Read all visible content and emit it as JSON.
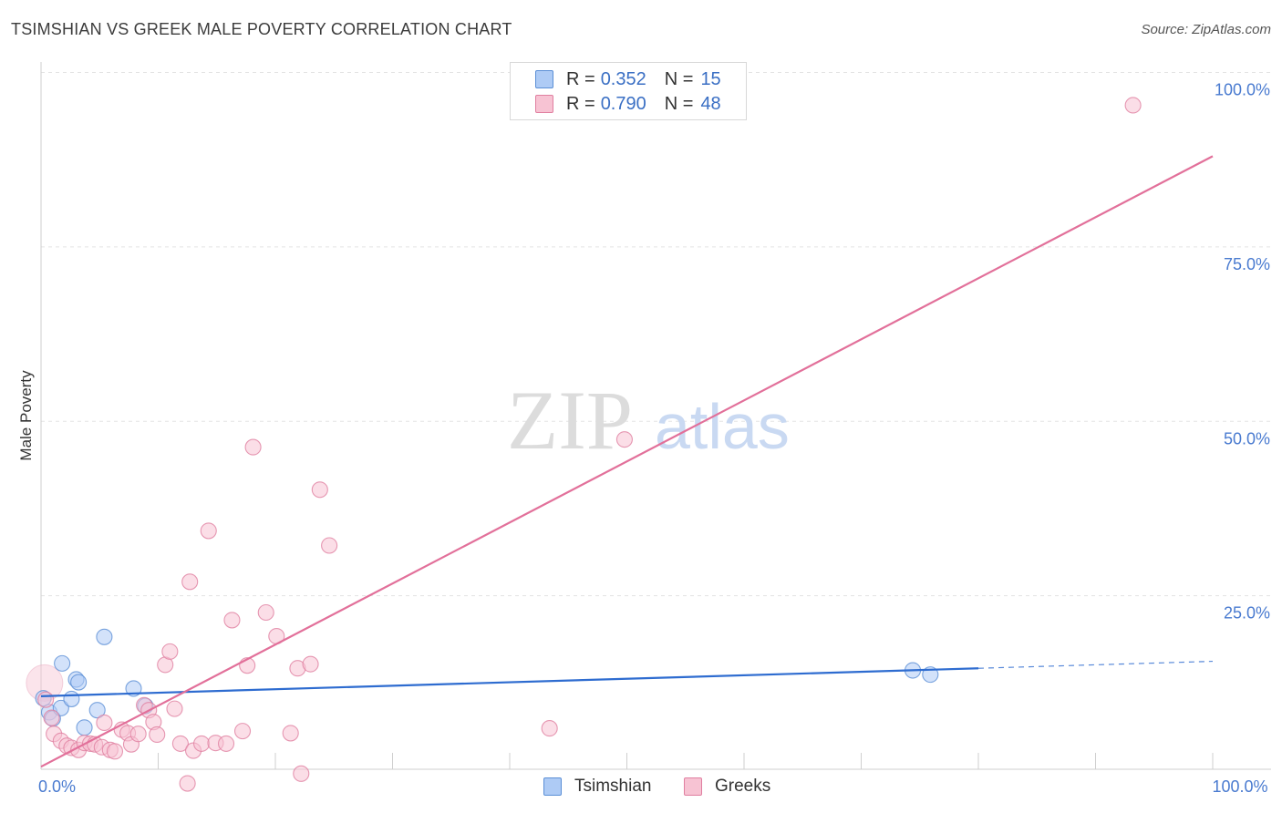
{
  "header": {
    "title": "TSIMSHIAN VS GREEK MALE POVERTY CORRELATION CHART",
    "source": "Source: ZipAtlas.com"
  },
  "watermark": {
    "part1": "ZIP",
    "part2": "atlas"
  },
  "legend": {
    "rows": [
      {
        "r_label": "R =",
        "r_value": "0.352",
        "n_label": "N =",
        "n_value": "15",
        "color": "#aecbf5",
        "border": "#5b8fd6"
      },
      {
        "r_label": "R =",
        "r_value": "0.790",
        "n_label": "N =",
        "n_value": "48",
        "color": "#f7c3d3",
        "border": "#e07fa0"
      }
    ]
  },
  "bottom_legend": {
    "items": [
      {
        "label": "Tsimshian",
        "color": "#aecbf5",
        "border": "#5b8fd6"
      },
      {
        "label": "Greeks",
        "color": "#f7c3d3",
        "border": "#e07fa0"
      }
    ]
  },
  "chart_data": {
    "type": "scatter",
    "title": "TSIMSHIAN VS GREEK MALE POVERTY CORRELATION CHART",
    "xlabel": "",
    "ylabel": "Male Poverty",
    "xlim": [
      0,
      100
    ],
    "ylim": [
      0,
      100
    ],
    "x_tick_labels": [
      {
        "value": 0,
        "label": "0.0%"
      },
      {
        "value": 100,
        "label": "100.0%"
      }
    ],
    "y_tick_labels": [
      {
        "value": 25,
        "label": "25.0%"
      },
      {
        "value": 50,
        "label": "50.0%"
      },
      {
        "value": 75,
        "label": "75.0%"
      },
      {
        "value": 100,
        "label": "100.0%"
      }
    ],
    "grid": true,
    "series": [
      {
        "name": "Tsimshian",
        "color": "#5b8fd6",
        "fill": "#aecbf5",
        "points": [
          [
            0.2,
            10.3
          ],
          [
            0.7,
            8.3
          ],
          [
            1.0,
            7.4
          ],
          [
            1.7,
            8.9
          ],
          [
            1.8,
            15.3
          ],
          [
            2.6,
            10.2
          ],
          [
            3.0,
            13.0
          ],
          [
            3.2,
            12.6
          ],
          [
            3.7,
            6.1
          ],
          [
            4.8,
            8.6
          ],
          [
            5.4,
            19.1
          ],
          [
            7.9,
            11.7
          ],
          [
            8.9,
            9.2
          ],
          [
            74.4,
            14.3
          ],
          [
            75.9,
            13.7
          ]
        ],
        "trend": {
          "x0": 0,
          "y0": 10.6,
          "x1": 80,
          "y1": 14.6,
          "dash_x1": 100,
          "dash_y1": 15.6
        }
      },
      {
        "name": "Greeks",
        "color": "#e07fa0",
        "fill": "#f7c3d3",
        "points": [
          [
            0.4,
            10.1
          ],
          [
            0.9,
            7.5
          ],
          [
            1.1,
            5.2
          ],
          [
            1.7,
            4.2
          ],
          [
            2.2,
            3.5
          ],
          [
            2.6,
            3.2
          ],
          [
            3.2,
            2.9
          ],
          [
            3.7,
            3.9
          ],
          [
            4.2,
            3.8
          ],
          [
            4.6,
            3.7
          ],
          [
            5.2,
            3.3
          ],
          [
            5.4,
            6.8
          ],
          [
            5.9,
            2.9
          ],
          [
            6.3,
            2.7
          ],
          [
            6.9,
            5.8
          ],
          [
            7.4,
            5.3
          ],
          [
            7.7,
            3.7
          ],
          [
            8.3,
            5.2
          ],
          [
            8.8,
            9.3
          ],
          [
            9.2,
            8.6
          ],
          [
            9.6,
            6.9
          ],
          [
            9.9,
            5.1
          ],
          [
            10.6,
            15.1
          ],
          [
            11.0,
            17.0
          ],
          [
            11.4,
            8.8
          ],
          [
            11.9,
            3.8
          ],
          [
            12.5,
            -1.9
          ],
          [
            12.7,
            27.0
          ],
          [
            13.0,
            2.8
          ],
          [
            13.7,
            3.8
          ],
          [
            14.3,
            34.3
          ],
          [
            14.9,
            3.9
          ],
          [
            15.8,
            3.8
          ],
          [
            16.3,
            21.5
          ],
          [
            17.2,
            5.6
          ],
          [
            17.6,
            15.0
          ],
          [
            18.1,
            46.3
          ],
          [
            19.2,
            22.6
          ],
          [
            20.1,
            19.2
          ],
          [
            21.3,
            5.3
          ],
          [
            21.9,
            14.6
          ],
          [
            22.2,
            -0.5
          ],
          [
            23.0,
            15.2
          ],
          [
            23.8,
            40.2
          ],
          [
            24.6,
            32.2
          ],
          [
            43.4,
            6.0
          ],
          [
            49.8,
            47.4
          ],
          [
            93.2,
            95.3
          ]
        ],
        "trend": {
          "x0": 0,
          "y0": 0.5,
          "x1": 100,
          "y1": 88.0
        }
      }
    ]
  }
}
